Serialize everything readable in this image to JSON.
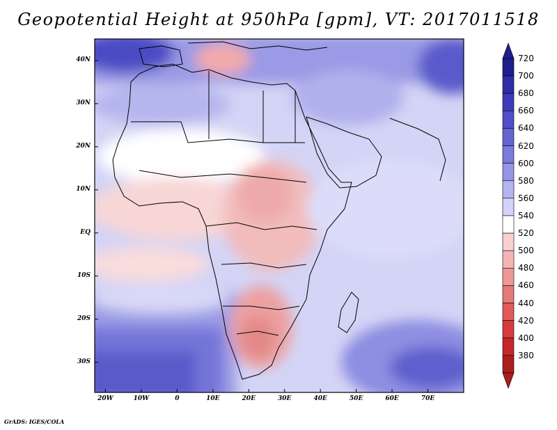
{
  "title": "Geopotential Height at 950hPa [gpm], VT: 2017011518",
  "credit": "GrADS: IGES/COLA",
  "map": {
    "projection": "lat-lon",
    "lon_range": [
      -23,
      80
    ],
    "lat_range": [
      -37,
      45
    ],
    "lat_ticks": [
      {
        "value": 40,
        "label": "40N"
      },
      {
        "value": 30,
        "label": "30N"
      },
      {
        "value": 20,
        "label": "20N"
      },
      {
        "value": 10,
        "label": "10N"
      },
      {
        "value": 0,
        "label": "EQ"
      },
      {
        "value": -10,
        "label": "10S"
      },
      {
        "value": -20,
        "label": "20S"
      },
      {
        "value": -30,
        "label": "30S"
      }
    ],
    "lon_ticks": [
      {
        "value": -20,
        "label": "20W"
      },
      {
        "value": -10,
        "label": "10W"
      },
      {
        "value": 0,
        "label": "0"
      },
      {
        "value": 10,
        "label": "10E"
      },
      {
        "value": 20,
        "label": "20E"
      },
      {
        "value": 30,
        "label": "30E"
      },
      {
        "value": 40,
        "label": "40E"
      },
      {
        "value": 50,
        "label": "50E"
      },
      {
        "value": 60,
        "label": "60E"
      },
      {
        "value": 70,
        "label": "70E"
      }
    ],
    "colorbar": {
      "levels": [
        "720",
        "700",
        "680",
        "660",
        "640",
        "620",
        "600",
        "580",
        "560",
        "540",
        "520",
        "500",
        "480",
        "460",
        "440",
        "420",
        "400",
        "380"
      ],
      "colors": [
        "#1e1e8c",
        "#2d2da8",
        "#3c3cb9",
        "#4f4fc8",
        "#6464d2",
        "#7b7bdc",
        "#9696e6",
        "#b4b4f0",
        "#d2d2fa",
        "#ffffff",
        "#f8d0d0",
        "#f2b4b4",
        "#ec9898",
        "#e67878",
        "#e05a5a",
        "#d63c3c",
        "#c42828",
        "#aa1e1e"
      ]
    }
  }
}
